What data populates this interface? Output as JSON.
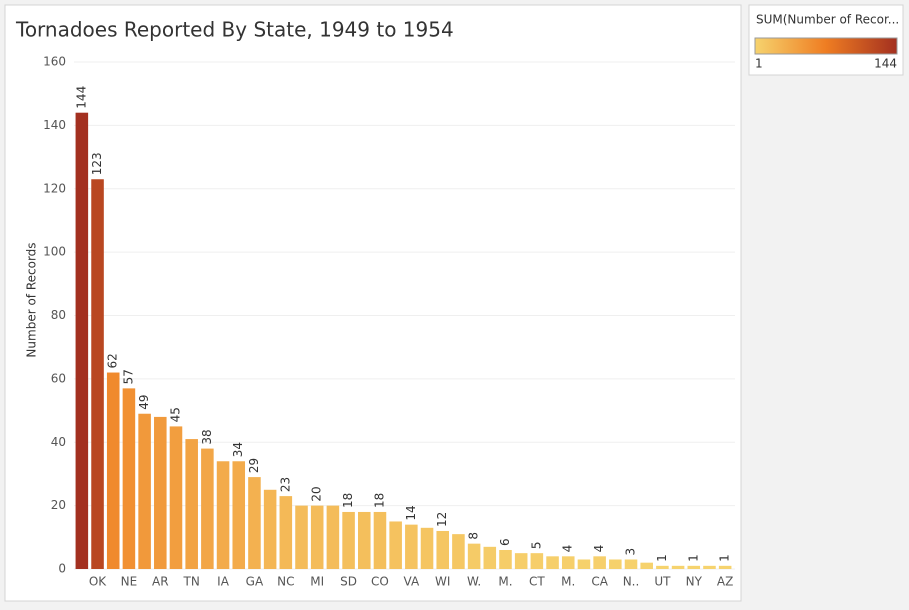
{
  "chart_data": {
    "type": "bar",
    "title": "Tornadoes Reported By State, 1949 to 1954",
    "y_label": "Number of Records",
    "categories": [
      null,
      "OK",
      null,
      "NE",
      null,
      "AR",
      null,
      "TN",
      null,
      "IA",
      null,
      "GA",
      null,
      "NC",
      null,
      "MI",
      null,
      "SD",
      null,
      "CO",
      null,
      "VA",
      null,
      "WI",
      null,
      "W.",
      null,
      "M.",
      null,
      "CT",
      null,
      "M.",
      null,
      "CA",
      null,
      "N..",
      null,
      "UT",
      null,
      "NY",
      null,
      "AZ"
    ],
    "values": [
      144,
      123,
      62,
      57,
      49,
      48,
      45,
      41,
      38,
      34,
      34,
      29,
      25,
      23,
      20,
      20,
      20,
      18,
      18,
      18,
      15,
      14,
      13,
      12,
      11,
      8,
      7,
      6,
      5,
      5,
      4,
      4,
      3,
      4,
      3,
      3,
      2,
      1,
      1,
      1,
      1,
      1
    ],
    "value_labels": [
      "144",
      "123",
      "62",
      "57",
      "49",
      null,
      "45",
      null,
      "38",
      null,
      "34",
      "29",
      null,
      "23",
      null,
      "20",
      null,
      "18",
      null,
      "18",
      null,
      "14",
      null,
      "12",
      null,
      "8",
      null,
      "6",
      null,
      "5",
      null,
      "4",
      null,
      "4",
      null,
      "3",
      null,
      "1",
      null,
      "1",
      null,
      "1"
    ],
    "ylim": [
      0,
      160
    ],
    "yticks": [
      0,
      20,
      40,
      60,
      80,
      100,
      120,
      140,
      160
    ],
    "grid": true,
    "legend": {
      "title": "SUM(Number of Recor...",
      "range": [
        1,
        144
      ],
      "colors": [
        "#f6d36e",
        "#ef7d22",
        "#a33020"
      ]
    }
  }
}
